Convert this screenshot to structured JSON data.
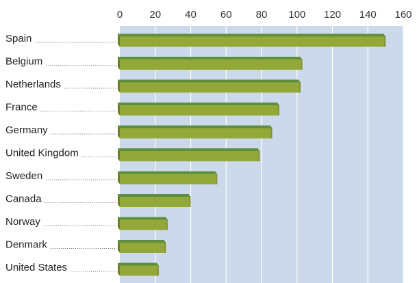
{
  "chart_data": {
    "type": "bar",
    "orientation": "horizontal",
    "categories": [
      "Spain",
      "Belgium",
      "Netherlands",
      "France",
      "Germany",
      "United Kingdom",
      "Sweden",
      "Canada",
      "Norway",
      "Denmark",
      "United States"
    ],
    "values": [
      150,
      103,
      102,
      90,
      86,
      79,
      55,
      40,
      27,
      26,
      22
    ],
    "title": "",
    "xlabel": "",
    "ylabel": "",
    "xlim": [
      0,
      160
    ],
    "ticks": [
      "0",
      "20",
      "40",
      "60",
      "80",
      "100",
      "120",
      "140",
      "160"
    ],
    "axis_position": "top",
    "grid": true,
    "colors": {
      "plot_background": "#ccd9ea",
      "gridline": "#ffffff",
      "bar_front": "#94a83a",
      "bar_top": "#5d8f3e",
      "bar_side": "#6f7d2a"
    }
  }
}
